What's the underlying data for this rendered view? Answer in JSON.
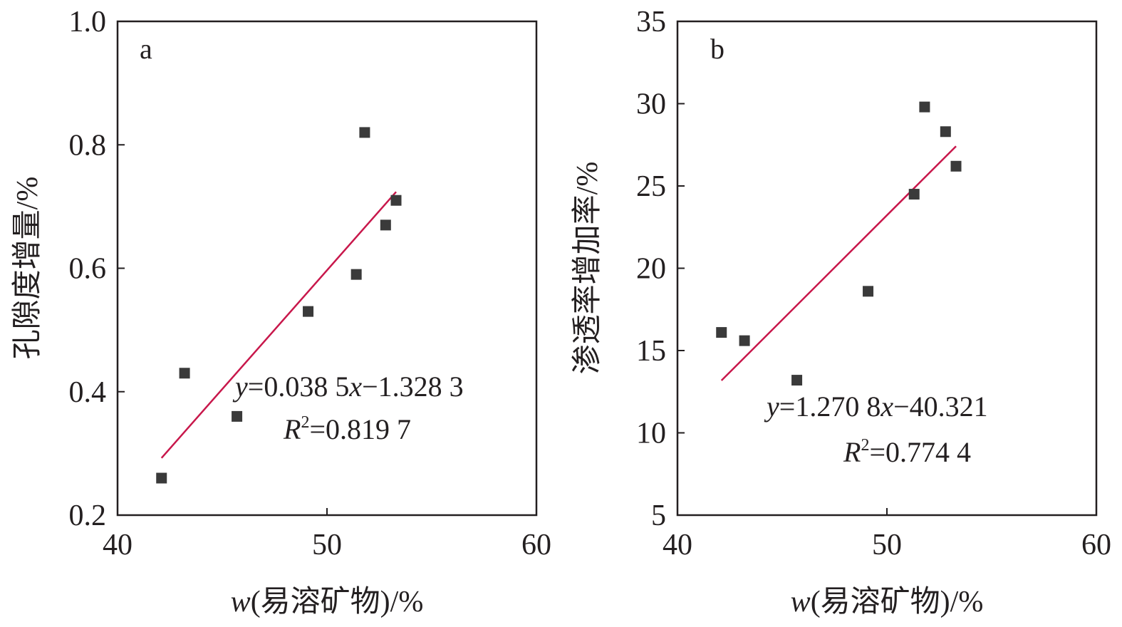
{
  "chart_data": [
    {
      "type": "scatter",
      "panel_label": "a",
      "xlabel_var": "w",
      "xlabel_rest": "(易溶矿物)/%",
      "ylabel": "孔隙度增量/%",
      "xlim": [
        40,
        60
      ],
      "ylim": [
        0.2,
        1.0
      ],
      "x_ticks": [
        "40",
        "50",
        "60"
      ],
      "y_ticks": [
        "0.2",
        "0.4",
        "0.6",
        "0.8",
        "1.0"
      ],
      "y_tick_values": [
        0.2,
        0.4,
        0.6,
        0.8,
        1.0
      ],
      "x_tick_values": [
        40,
        50,
        60
      ],
      "points": [
        {
          "x": 42.1,
          "y": 0.26
        },
        {
          "x": 43.2,
          "y": 0.43
        },
        {
          "x": 45.7,
          "y": 0.36
        },
        {
          "x": 49.1,
          "y": 0.53
        },
        {
          "x": 51.4,
          "y": 0.59
        },
        {
          "x": 51.8,
          "y": 0.82
        },
        {
          "x": 52.8,
          "y": 0.67
        },
        {
          "x": 53.3,
          "y": 0.71
        }
      ],
      "fit": {
        "slope": 0.0385,
        "intercept": -1.3283,
        "x_range": [
          42.1,
          53.3
        ],
        "equation_y": "y",
        "equation_rest": "=0.038 5",
        "equation_x": "x",
        "equation_tail": "−1.328 3",
        "r2_letter": "R",
        "r2_sup": "2",
        "r2_value": "=0.819 7"
      }
    },
    {
      "type": "scatter",
      "panel_label": "b",
      "xlabel_var": "w",
      "xlabel_rest": "(易溶矿物)/%",
      "ylabel": "渗透率增加率/%",
      "xlim": [
        40,
        60
      ],
      "ylim": [
        5,
        35
      ],
      "x_ticks": [
        "40",
        "50",
        "60"
      ],
      "y_ticks": [
        "5",
        "10",
        "15",
        "20",
        "25",
        "30",
        "35"
      ],
      "y_tick_values": [
        5,
        10,
        15,
        20,
        25,
        30,
        35
      ],
      "x_tick_values": [
        40,
        50,
        60
      ],
      "points": [
        {
          "x": 42.1,
          "y": 16.1
        },
        {
          "x": 43.2,
          "y": 15.6
        },
        {
          "x": 45.7,
          "y": 13.2
        },
        {
          "x": 49.1,
          "y": 18.6
        },
        {
          "x": 51.3,
          "y": 24.5
        },
        {
          "x": 51.8,
          "y": 29.8
        },
        {
          "x": 52.8,
          "y": 28.3
        },
        {
          "x": 53.3,
          "y": 26.2
        }
      ],
      "fit": {
        "slope": 1.2708,
        "intercept": -40.321,
        "x_range": [
          42.1,
          53.3
        ],
        "equation_y": "y",
        "equation_rest": "=1.270 8",
        "equation_x": "x",
        "equation_tail": "−40.321",
        "r2_letter": "R",
        "r2_sup": "2",
        "r2_value": "=0.774 4"
      }
    }
  ]
}
